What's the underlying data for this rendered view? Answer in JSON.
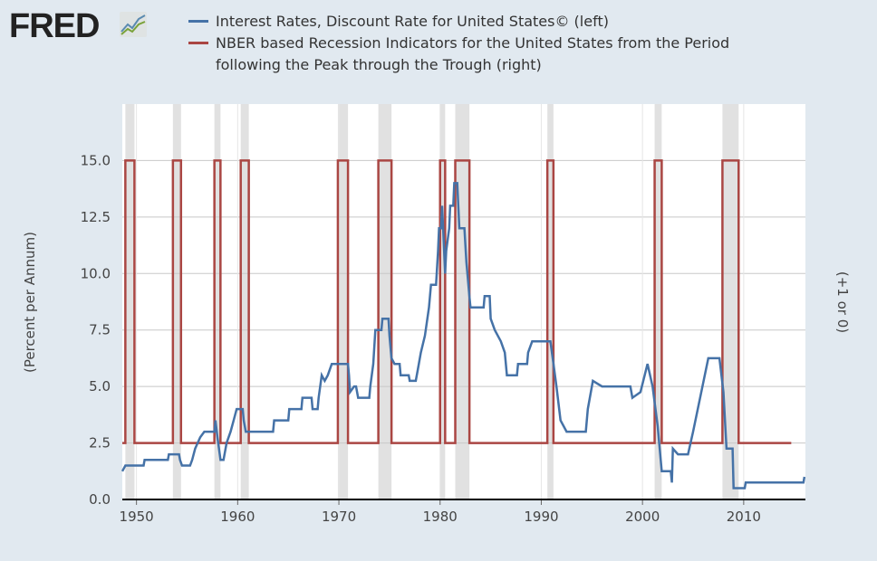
{
  "logo": {
    "text": "FRED"
  },
  "chart_data": {
    "type": "line",
    "grid": true,
    "legend_placement": "top",
    "ylabel_left": "(Percent per Annum)",
    "ylabel_right": "(+1 or 0)",
    "xlim": [
      1948.6,
      2016.1
    ],
    "ylim": [
      0,
      17.5
    ],
    "yticks": [
      "0.0",
      "2.5",
      "5.0",
      "7.5",
      "10.0",
      "12.5",
      "15.0"
    ],
    "xticks": [
      "1950",
      "1960",
      "1970",
      "1980",
      "1990",
      "2000",
      "2010"
    ],
    "recession_shading": [
      [
        1948.9,
        1949.8
      ],
      [
        1953.6,
        1954.4
      ],
      [
        1957.7,
        1958.3
      ],
      [
        1960.3,
        1961.1
      ],
      [
        1969.9,
        1970.9
      ],
      [
        1973.9,
        1975.2
      ],
      [
        1980.0,
        1980.5
      ],
      [
        1981.5,
        1982.9
      ],
      [
        1990.6,
        1991.2
      ],
      [
        2001.2,
        2001.9
      ],
      [
        2007.9,
        2009.5
      ]
    ],
    "series": [
      {
        "name": "Interest Rates, Discount Rate for United States© (left)",
        "color": "#4572a7",
        "axis": "left",
        "points": [
          [
            1948.6,
            1.25
          ],
          [
            1948.9,
            1.5
          ],
          [
            1950.7,
            1.5
          ],
          [
            1950.8,
            1.75
          ],
          [
            1953.1,
            1.75
          ],
          [
            1953.2,
            2.0
          ],
          [
            1954.2,
            2.0
          ],
          [
            1954.3,
            1.75
          ],
          [
            1954.5,
            1.5
          ],
          [
            1955.3,
            1.5
          ],
          [
            1955.5,
            1.75
          ],
          [
            1955.8,
            2.25
          ],
          [
            1956.3,
            2.75
          ],
          [
            1956.7,
            3.0
          ],
          [
            1957.7,
            3.0
          ],
          [
            1957.8,
            3.5
          ],
          [
            1958.0,
            2.75
          ],
          [
            1958.3,
            1.75
          ],
          [
            1958.6,
            1.75
          ],
          [
            1958.9,
            2.5
          ],
          [
            1959.3,
            3.0
          ],
          [
            1959.6,
            3.5
          ],
          [
            1959.9,
            4.0
          ],
          [
            1960.5,
            4.0
          ],
          [
            1960.6,
            3.5
          ],
          [
            1960.8,
            3.0
          ],
          [
            1963.5,
            3.0
          ],
          [
            1963.6,
            3.5
          ],
          [
            1965.0,
            3.5
          ],
          [
            1965.1,
            4.0
          ],
          [
            1966.3,
            4.0
          ],
          [
            1966.4,
            4.5
          ],
          [
            1967.3,
            4.5
          ],
          [
            1967.4,
            4.0
          ],
          [
            1967.9,
            4.0
          ],
          [
            1968.0,
            4.5
          ],
          [
            1968.3,
            5.5
          ],
          [
            1968.6,
            5.25
          ],
          [
            1968.9,
            5.5
          ],
          [
            1969.3,
            6.0
          ],
          [
            1970.9,
            6.0
          ],
          [
            1971.0,
            5.5
          ],
          [
            1971.1,
            4.75
          ],
          [
            1971.5,
            5.0
          ],
          [
            1971.7,
            5.0
          ],
          [
            1971.9,
            4.5
          ],
          [
            1973.0,
            4.5
          ],
          [
            1973.1,
            5.0
          ],
          [
            1973.4,
            6.0
          ],
          [
            1973.6,
            7.5
          ],
          [
            1974.2,
            7.5
          ],
          [
            1974.3,
            8.0
          ],
          [
            1974.9,
            8.0
          ],
          [
            1975.0,
            7.25
          ],
          [
            1975.2,
            6.25
          ],
          [
            1975.5,
            6.0
          ],
          [
            1976.0,
            6.0
          ],
          [
            1976.1,
            5.5
          ],
          [
            1976.9,
            5.5
          ],
          [
            1977.0,
            5.25
          ],
          [
            1977.6,
            5.25
          ],
          [
            1977.8,
            5.75
          ],
          [
            1978.1,
            6.5
          ],
          [
            1978.5,
            7.25
          ],
          [
            1978.9,
            8.5
          ],
          [
            1979.1,
            9.5
          ],
          [
            1979.6,
            9.5
          ],
          [
            1979.8,
            11.0
          ],
          [
            1979.9,
            12.0
          ],
          [
            1980.1,
            12.0
          ],
          [
            1980.2,
            13.0
          ],
          [
            1980.5,
            10.0
          ],
          [
            1980.6,
            11.0
          ],
          [
            1980.9,
            12.0
          ],
          [
            1981.0,
            13.0
          ],
          [
            1981.3,
            13.0
          ],
          [
            1981.4,
            14.0
          ],
          [
            1981.7,
            14.0
          ],
          [
            1981.9,
            12.0
          ],
          [
            1982.4,
            12.0
          ],
          [
            1982.6,
            10.5
          ],
          [
            1982.9,
            9.0
          ],
          [
            1983.0,
            8.5
          ],
          [
            1984.3,
            8.5
          ],
          [
            1984.4,
            9.0
          ],
          [
            1984.9,
            9.0
          ],
          [
            1985.0,
            8.0
          ],
          [
            1985.4,
            7.5
          ],
          [
            1986.0,
            7.0
          ],
          [
            1986.4,
            6.5
          ],
          [
            1986.6,
            5.5
          ],
          [
            1987.6,
            5.5
          ],
          [
            1987.7,
            6.0
          ],
          [
            1988.6,
            6.0
          ],
          [
            1988.7,
            6.5
          ],
          [
            1989.1,
            7.0
          ],
          [
            1990.9,
            7.0
          ],
          [
            1991.2,
            6.0
          ],
          [
            1991.5,
            5.0
          ],
          [
            1991.9,
            3.5
          ],
          [
            1992.5,
            3.0
          ],
          [
            1994.4,
            3.0
          ],
          [
            1994.6,
            4.0
          ],
          [
            1995.1,
            5.25
          ],
          [
            1996.0,
            5.0
          ],
          [
            1998.8,
            5.0
          ],
          [
            1999.0,
            4.5
          ],
          [
            1999.8,
            4.75
          ],
          [
            2000.5,
            6.0
          ],
          [
            2001.0,
            5.0
          ],
          [
            2001.5,
            3.25
          ],
          [
            2001.9,
            1.25
          ],
          [
            2002.8,
            1.25
          ],
          [
            2002.9,
            0.75
          ],
          [
            2003.0,
            2.25
          ],
          [
            2003.5,
            2.0
          ],
          [
            2004.5,
            2.0
          ],
          [
            2005.0,
            3.0
          ],
          [
            2006.5,
            6.25
          ],
          [
            2007.6,
            6.25
          ],
          [
            2008.0,
            4.75
          ],
          [
            2008.3,
            2.25
          ],
          [
            2008.9,
            2.25
          ],
          [
            2009.0,
            0.5
          ],
          [
            2010.1,
            0.5
          ],
          [
            2010.2,
            0.75
          ],
          [
            2015.9,
            0.75
          ],
          [
            2016.0,
            1.0
          ]
        ]
      },
      {
        "name": "NBER based Recession Indicators for the United States from the Period following the Peak through the Trough (right)",
        "color": "#aa4643",
        "axis": "right",
        "right_ylim": [
          -0.2,
          1.2
        ],
        "end": 2014.7
      }
    ]
  }
}
